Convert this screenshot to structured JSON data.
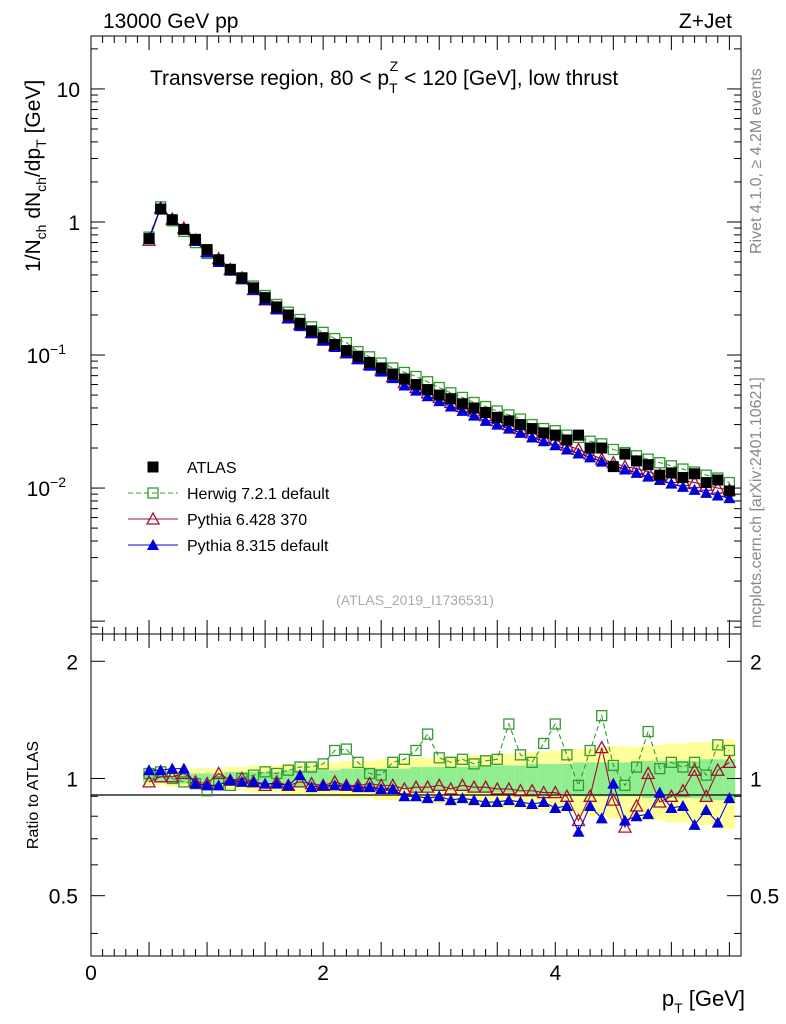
{
  "header": {
    "energy": "13000 GeV pp",
    "process": "Z+Jet",
    "title": "Transverse region, 80 < p_T^Z < 120 [GeV], low thrust",
    "title_prefix": "Transverse region, 80 < p",
    "title_sub": "T",
    "title_sup": "Z",
    "title_suffix": " < 120 [GeV], low thrust"
  },
  "side": {
    "rivet": "Rivet 4.1.0, ≥ 4.2M events",
    "mcplots": "mcplots.cern.ch [arXiv:2401.10621]"
  },
  "analysis_id": "(ATLAS_2019_I1736531)",
  "colors": {
    "atlas": "#000000",
    "herwig": "#339933",
    "pythia6": "#a01030",
    "pythia8": "#0000dd",
    "band_inner": "#90ee90",
    "band_outer": "#ffff99"
  },
  "chart_data": [
    {
      "type": "line",
      "panel": "main",
      "yscale": "log",
      "ylabel": "1/N_ch dN_ch/dp_T [GeV]",
      "xlim": [
        0,
        5.6
      ],
      "ylim": [
        0.0008,
        25
      ],
      "yticks": [
        {
          "v": 0.01,
          "b": "10",
          "e": "−2"
        },
        {
          "v": 0.1,
          "b": "10",
          "e": "−1"
        },
        {
          "v": 1,
          "b": "1",
          "e": ""
        },
        {
          "v": 10,
          "b": "10",
          "e": ""
        }
      ],
      "x": [
        0.5,
        0.6,
        0.7,
        0.8,
        0.9,
        1.0,
        1.1,
        1.2,
        1.3,
        1.4,
        1.5,
        1.6,
        1.7,
        1.8,
        1.9,
        2.0,
        2.1,
        2.2,
        2.3,
        2.4,
        2.5,
        2.6,
        2.7,
        2.8,
        2.9,
        3.0,
        3.1,
        3.2,
        3.3,
        3.4,
        3.5,
        3.6,
        3.7,
        3.8,
        3.9,
        4.0,
        4.1,
        4.2,
        4.3,
        4.4,
        4.5,
        4.6,
        4.7,
        4.8,
        4.9,
        5.0,
        5.1,
        5.2,
        5.3,
        5.4,
        5.5
      ],
      "series": [
        {
          "name": "ATLAS",
          "values": [
            0.75,
            1.25,
            1.04,
            0.88,
            0.74,
            0.62,
            0.52,
            0.44,
            0.38,
            0.32,
            0.27,
            0.23,
            0.2,
            0.173,
            0.152,
            0.135,
            0.12,
            0.108,
            0.098,
            0.088,
            0.08,
            0.072,
            0.066,
            0.06,
            0.055,
            0.05,
            0.047,
            0.043,
            0.04,
            0.037,
            0.034,
            0.032,
            0.03,
            0.028,
            0.026,
            0.025,
            0.023,
            0.025,
            0.02,
            0.02,
            0.0145,
            0.018,
            0.016,
            0.015,
            0.0125,
            0.013,
            0.012,
            0.0128,
            0.011,
            0.0115,
            0.0095
          ]
        },
        {
          "name": "Herwig 7.2.1 default",
          "values": [
            0.77,
            1.3,
            1.02,
            0.85,
            0.7,
            0.58,
            0.51,
            0.44,
            0.38,
            0.33,
            0.28,
            0.24,
            0.21,
            0.185,
            0.163,
            0.148,
            0.133,
            0.124,
            0.106,
            0.097,
            0.087,
            0.08,
            0.074,
            0.069,
            0.063,
            0.057,
            0.052,
            0.048,
            0.044,
            0.041,
            0.038,
            0.0355,
            0.033,
            0.03,
            0.028,
            0.027,
            0.025,
            0.024,
            0.0225,
            0.0215,
            0.0195,
            0.0185,
            0.0175,
            0.0165,
            0.0155,
            0.0147,
            0.0139,
            0.0132,
            0.0125,
            0.0119,
            0.011
          ]
        },
        {
          "name": "Pythia 6.428 370",
          "values": [
            0.73,
            1.27,
            1.05,
            0.9,
            0.73,
            0.6,
            0.53,
            0.44,
            0.38,
            0.31,
            0.26,
            0.225,
            0.19,
            0.17,
            0.147,
            0.13,
            0.118,
            0.104,
            0.094,
            0.085,
            0.077,
            0.069,
            0.062,
            0.057,
            0.052,
            0.048,
            0.044,
            0.041,
            0.038,
            0.035,
            0.032,
            0.03,
            0.028,
            0.026,
            0.024,
            0.023,
            0.021,
            0.0195,
            0.018,
            0.0165,
            0.0155,
            0.0145,
            0.014,
            0.0133,
            0.0125,
            0.012,
            0.0114,
            0.011,
            0.0105,
            0.01,
            0.0097
          ]
        },
        {
          "name": "Pythia 8.315 default",
          "values": [
            0.76,
            1.28,
            1.06,
            0.88,
            0.72,
            0.59,
            0.5,
            0.43,
            0.37,
            0.31,
            0.26,
            0.22,
            0.19,
            0.165,
            0.146,
            0.128,
            0.115,
            0.103,
            0.093,
            0.083,
            0.075,
            0.067,
            0.059,
            0.054,
            0.049,
            0.045,
            0.041,
            0.038,
            0.035,
            0.032,
            0.03,
            0.028,
            0.026,
            0.024,
            0.0225,
            0.021,
            0.0195,
            0.0182,
            0.017,
            0.0158,
            0.0148,
            0.0138,
            0.013,
            0.0122,
            0.0115,
            0.0108,
            0.0102,
            0.0097,
            0.0092,
            0.0088,
            0.0084
          ]
        }
      ]
    },
    {
      "type": "line",
      "panel": "ratio",
      "ylabel": "Ratio to ATLAS",
      "xlabel": "p_T [GeV]",
      "xlim": [
        0,
        5.6
      ],
      "ylim": [
        0.35,
        2.35
      ],
      "xticks": [
        0,
        2,
        4
      ],
      "yticks": [
        0.5,
        1,
        2
      ],
      "x": [
        0.5,
        0.6,
        0.7,
        0.8,
        0.9,
        1.0,
        1.1,
        1.2,
        1.3,
        1.4,
        1.5,
        1.6,
        1.7,
        1.8,
        1.9,
        2.0,
        2.1,
        2.2,
        2.3,
        2.4,
        2.5,
        2.6,
        2.7,
        2.8,
        2.9,
        3.0,
        3.1,
        3.2,
        3.3,
        3.4,
        3.5,
        3.6,
        3.7,
        3.8,
        3.9,
        4.0,
        4.1,
        4.2,
        4.3,
        4.4,
        4.5,
        4.6,
        4.7,
        4.8,
        4.9,
        5.0,
        5.1,
        5.2,
        5.3,
        5.4,
        5.5
      ],
      "band_inner": [
        0.02,
        0.02,
        0.02,
        0.03,
        0.03,
        0.03,
        0.03,
        0.04,
        0.04,
        0.04,
        0.04,
        0.04,
        0.05,
        0.05,
        0.05,
        0.05,
        0.05,
        0.06,
        0.06,
        0.06,
        0.06,
        0.06,
        0.06,
        0.07,
        0.07,
        0.07,
        0.07,
        0.07,
        0.08,
        0.08,
        0.08,
        0.08,
        0.08,
        0.09,
        0.09,
        0.09,
        0.09,
        0.1,
        0.1,
        0.1,
        0.1,
        0.1,
        0.1,
        0.11,
        0.11,
        0.11,
        0.11,
        0.11,
        0.12,
        0.12,
        0.12
      ],
      "band_outer": [
        0.04,
        0.04,
        0.05,
        0.05,
        0.06,
        0.06,
        0.06,
        0.07,
        0.07,
        0.08,
        0.08,
        0.08,
        0.09,
        0.09,
        0.1,
        0.1,
        0.1,
        0.11,
        0.11,
        0.11,
        0.12,
        0.12,
        0.12,
        0.13,
        0.13,
        0.14,
        0.14,
        0.14,
        0.15,
        0.15,
        0.16,
        0.16,
        0.16,
        0.17,
        0.17,
        0.18,
        0.18,
        0.19,
        0.2,
        0.2,
        0.21,
        0.21,
        0.21,
        0.22,
        0.22,
        0.23,
        0.23,
        0.24,
        0.24,
        0.25,
        0.26
      ],
      "series": [
        {
          "name": "Herwig 7.2.1 default",
          "values": [
            1.03,
            1.04,
            1.0,
            0.98,
            0.97,
            0.93,
            0.98,
            0.96,
            1.0,
            1.02,
            1.04,
            1.03,
            1.05,
            1.07,
            1.07,
            1.09,
            1.18,
            1.19,
            1.1,
            1.03,
            1.02,
            1.1,
            1.12,
            1.18,
            1.3,
            1.13,
            1.1,
            1.12,
            1.09,
            1.11,
            1.12,
            1.38,
            1.15,
            1.1,
            1.23,
            1.38,
            1.15,
            0.96,
            1.18,
            1.45,
            1.08,
            0.96,
            1.07,
            1.32,
            1.06,
            1.1,
            1.07,
            1.1,
            1.02,
            1.22,
            1.18
          ]
        },
        {
          "name": "Pythia 6.428 370",
          "values": [
            0.98,
            1.01,
            1.01,
            1.03,
            0.98,
            0.97,
            1.03,
            0.99,
            1.0,
            0.98,
            0.96,
            0.98,
            0.96,
            0.98,
            0.97,
            0.96,
            0.98,
            0.96,
            0.96,
            0.97,
            0.96,
            0.96,
            0.94,
            0.95,
            0.95,
            0.96,
            0.94,
            0.96,
            0.95,
            0.95,
            0.94,
            0.94,
            0.93,
            0.93,
            0.92,
            0.92,
            0.9,
            0.78,
            0.9,
            1.2,
            0.88,
            0.75,
            0.85,
            1.03,
            0.87,
            0.9,
            0.93,
            1.05,
            0.9,
            1.05,
            1.1
          ]
        },
        {
          "name": "Pythia 8.315 default",
          "values": [
            1.05,
            1.05,
            1.06,
            1.06,
            0.97,
            0.96,
            0.96,
            0.99,
            0.98,
            0.98,
            0.97,
            0.97,
            0.96,
            1.02,
            0.95,
            0.96,
            0.96,
            0.96,
            0.95,
            0.95,
            0.94,
            0.94,
            0.9,
            0.9,
            0.89,
            0.9,
            0.88,
            0.89,
            0.88,
            0.87,
            0.87,
            0.88,
            0.87,
            0.86,
            0.87,
            0.84,
            0.85,
            0.73,
            0.85,
            0.79,
            0.97,
            0.78,
            0.8,
            0.81,
            0.92,
            0.84,
            0.85,
            0.76,
            0.83,
            0.77,
            0.89
          ]
        }
      ]
    }
  ],
  "legend": [
    {
      "label": "ATLAS",
      "marker": "square-filled"
    },
    {
      "label": "Herwig 7.2.1 default",
      "marker": "square-open"
    },
    {
      "label": "Pythia 6.428 370",
      "marker": "triangle-open"
    },
    {
      "label": "Pythia 8.315 default",
      "marker": "triangle-filled"
    }
  ]
}
